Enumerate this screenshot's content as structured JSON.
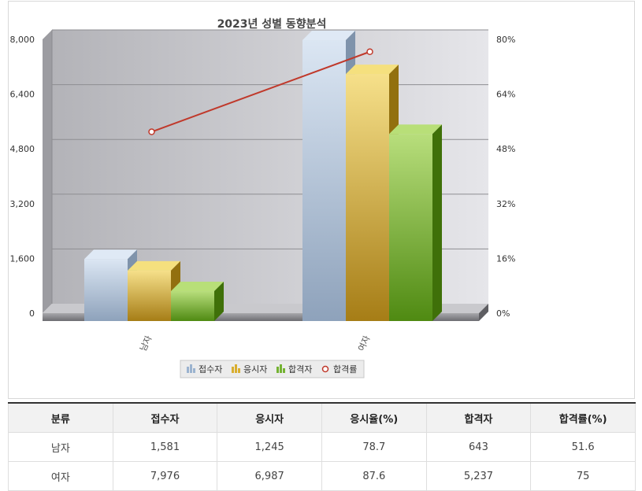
{
  "chart_data": {
    "type": "bar",
    "title": "2023년 성별 동향분석",
    "categories": [
      "남자",
      "여자"
    ],
    "series": [
      {
        "name": "접수자",
        "values": [
          1581,
          7976
        ],
        "axis": "left"
      },
      {
        "name": "응시자",
        "values": [
          1245,
          6987
        ],
        "axis": "left"
      },
      {
        "name": "합격자",
        "values": [
          643,
          5237
        ],
        "axis": "left"
      }
    ],
    "line_series": [
      {
        "name": "합격률",
        "values": [
          51.6,
          75
        ],
        "axis": "right"
      }
    ],
    "ylim": [
      0,
      8000
    ],
    "y_ticks": [
      "8,000",
      "6,400",
      "4,800",
      "3,200",
      "1,600",
      "0"
    ],
    "y2lim": [
      0,
      80
    ],
    "y2_ticks": [
      "80%",
      "64%",
      "48%",
      "32%",
      "16%",
      "0%"
    ],
    "grid": true,
    "legend": "bottom",
    "colors": {
      "접수자": "#a9bed6",
      "응시자": "#d9b33f",
      "합격자": "#7fb83a",
      "합격률": "#c0392b"
    }
  },
  "table": {
    "headers": [
      "분류",
      "접수자",
      "응시자",
      "응시율(%)",
      "합격자",
      "합격률(%)"
    ],
    "rows": [
      [
        "남자",
        "1,581",
        "1,245",
        "78.7",
        "643",
        "51.6"
      ],
      [
        "여자",
        "7,976",
        "6,987",
        "87.6",
        "5,237",
        "75"
      ]
    ]
  }
}
